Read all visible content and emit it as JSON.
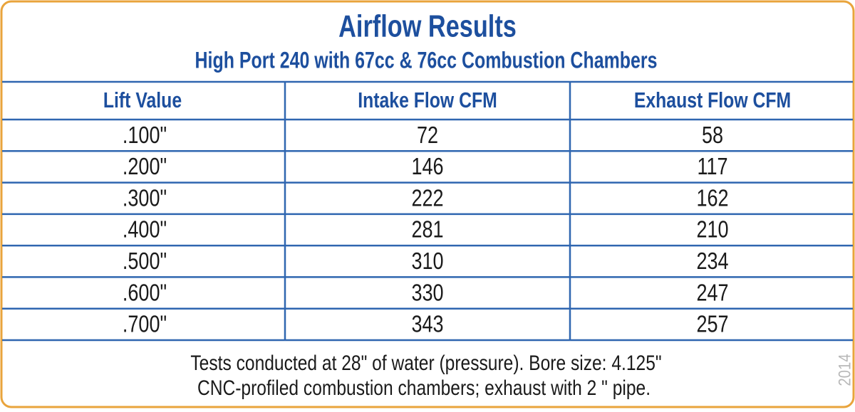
{
  "title": "Airflow Results",
  "subtitle": "High Port 240 with 67cc & 76cc Combustion Chambers",
  "table": {
    "header": [
      "Lift Value",
      "Intake Flow CFM",
      "Exhaust Flow CFM"
    ],
    "rows": [
      [
        ".100\"",
        72,
        58
      ],
      [
        ".200\"",
        146,
        117
      ],
      [
        ".300\"",
        222,
        162
      ],
      [
        ".400\"",
        281,
        210
      ],
      [
        ".500\"",
        310,
        234
      ],
      [
        ".600\"",
        330,
        247
      ],
      [
        ".700\"",
        343,
        257
      ]
    ]
  },
  "footer": [
    "Tests conducted at 28\" of water (pressure). Bore size: 4.125\"",
    "CNC-profiled combustion chambers; exhaust with  2 \" pipe."
  ],
  "year": "2014"
}
